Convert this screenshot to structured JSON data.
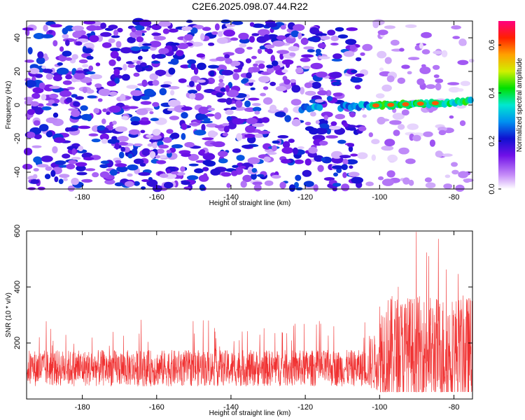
{
  "chart_data": [
    {
      "type": "heatmap",
      "title": "C2E6.2025.098.07.44.R22",
      "xlabel": "Height of straight line (km)",
      "ylabel": "Frequency (Hz)",
      "xlim": [
        -195,
        -75
      ],
      "ylim": [
        -50,
        50
      ],
      "x_ticks": [
        -180,
        -160,
        -140,
        -120,
        -100,
        -80
      ],
      "y_ticks": [
        40,
        20,
        0,
        -20,
        -40
      ],
      "colorbar": {
        "label": "Normalized spectral amplitude",
        "range": [
          0.0,
          0.7
        ],
        "ticks": [
          "0.0",
          "0.2",
          "0.4",
          "0.6"
        ]
      },
      "features": {
        "noise_region_x": [
          -195,
          -105
        ],
        "signal_band_x": [
          -121,
          -75
        ],
        "signal_freq_start_hz": -2,
        "signal_freq_end_hz": 2,
        "peak_amplitude_x": [
          -101,
          -97,
          -93,
          -89,
          -85
        ],
        "peak_amplitude": 0.6
      },
      "grid": false
    },
    {
      "type": "line",
      "title": "",
      "xlabel": "Height of straight line (km)",
      "ylabel": "SNR (10 * v/v)",
      "xlim": [
        -195,
        -75
      ],
      "ylim": [
        0,
        600
      ],
      "x_ticks": [
        -180,
        -160,
        -140,
        -120,
        -100,
        -80
      ],
      "y_ticks": [
        200,
        400,
        600
      ],
      "series": [
        {
          "color": "#f03030",
          "segments": [
            {
              "x_range": [
                -195,
                -103
              ],
              "baseline": 110,
              "amplitude": 65,
              "max": 285
            },
            {
              "x_range": [
                -103,
                -100
              ],
              "baseline": 130,
              "amplitude": 100,
              "max": 330
            },
            {
              "x_range": [
                -100,
                -75
              ],
              "baseline": 170,
              "amplitude": 200,
              "max": 600
            }
          ]
        }
      ],
      "grid": false
    }
  ]
}
